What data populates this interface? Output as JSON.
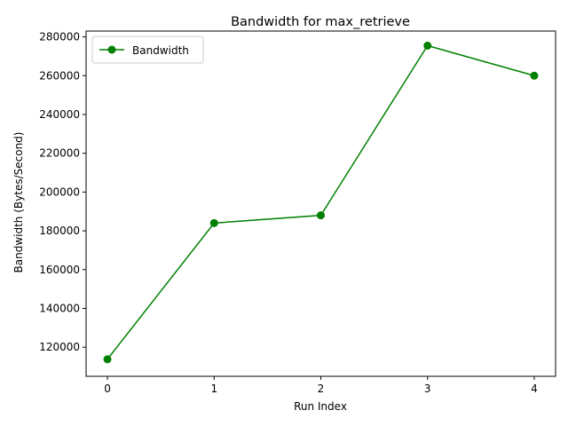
{
  "chart_data": {
    "type": "line",
    "title": "Bandwidth for max_retrieve",
    "xlabel": "Run Index",
    "ylabel": "Bandwidth (Bytes/Second)",
    "x": [
      0,
      1,
      2,
      3,
      4
    ],
    "xticks": [
      "0",
      "1",
      "2",
      "3",
      "4"
    ],
    "yticks": [
      "120000",
      "140000",
      "160000",
      "180000",
      "200000",
      "220000",
      "240000",
      "260000",
      "280000"
    ],
    "ytick_values": [
      120000,
      140000,
      160000,
      180000,
      200000,
      220000,
      240000,
      260000,
      280000
    ],
    "xlim": [
      -0.2,
      4.2
    ],
    "ylim": [
      105000,
      283000
    ],
    "grid": false,
    "legend": "top-left",
    "series": [
      {
        "name": "Bandwidth",
        "color": "#008000",
        "marker": "circle",
        "values": [
          113800,
          184000,
          188000,
          275500,
          260000
        ]
      }
    ]
  }
}
